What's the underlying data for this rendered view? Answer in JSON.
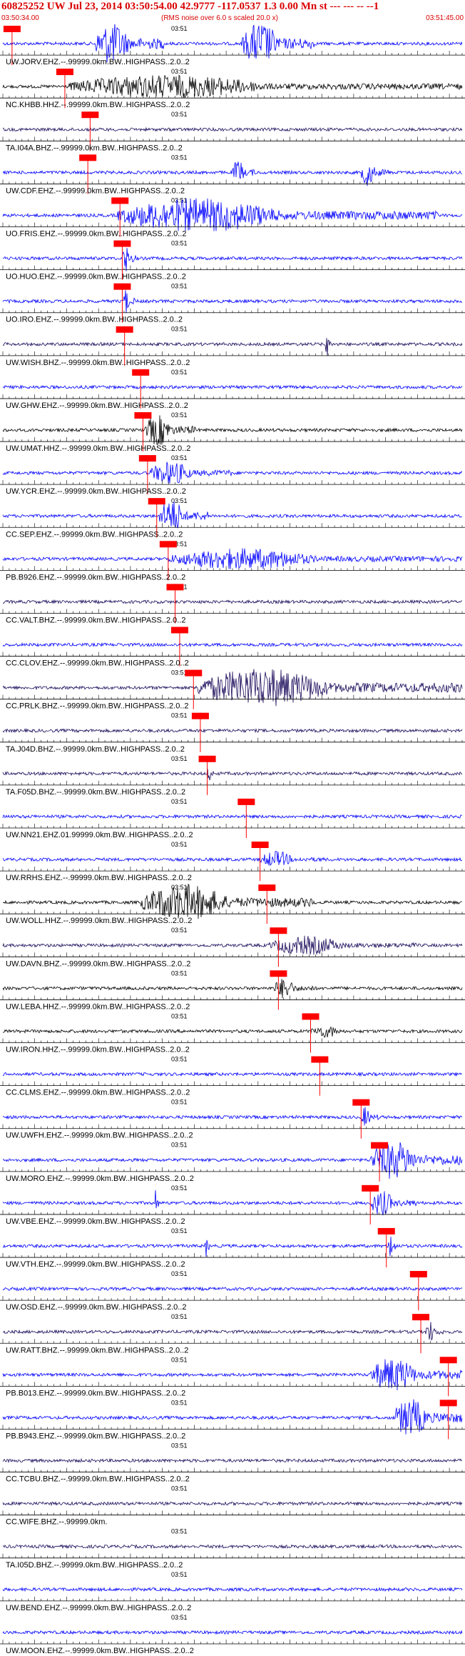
{
  "header": {
    "title": "60825252 UW Jul 23, 2014 03:50:54.00   42.9777 -117.0537  1.3 0.00 Mn st --- --- -- --1",
    "start_time": "03:50:34.00",
    "note": "(RMS noise over 6.0 s scaled 20.0 x)",
    "end_time": "03:51:45.00",
    "minute_mark": "03:51"
  },
  "colors": {
    "header_text": "#d90000",
    "pick_line": "#ff0000",
    "trace_blue": "#0000ff",
    "trace_black": "#000000",
    "trace_navy": "#1a0a5a",
    "axis": "#000000"
  },
  "chart_data": {
    "type": "line",
    "title": "60825252 UW Jul 23, 2014 03:50:54.00",
    "xlabel": "",
    "ylabel": "",
    "xlim": [
      "03:50:34.00",
      "03:51:45.00"
    ],
    "x_marker": "03:51",
    "grid": false,
    "legend": "none",
    "series": [
      {
        "name": "UW.JORV.EHZ.--.99999.0km.BW..HIGHPASS..2.0..2",
        "color": "blue",
        "pick_fraction": 0.02,
        "bursts": [
          [
            0.2,
            0.35,
            1.0
          ],
          [
            0.52,
            0.68,
            1.0
          ]
        ]
      },
      {
        "name": "NC.KHBB.HHZ.--.99999.0km.BW..HIGHPASS..2.0..2",
        "color": "black",
        "pick_fraction": 0.135,
        "bursts": [
          [
            0.14,
            1.0,
            0.55
          ]
        ]
      },
      {
        "name": "TA.I04A.BHZ.--.99999.0km.BW..HIGHPASS..2.0..2",
        "color": "navy",
        "pick_fraction": 0.19,
        "bursts": []
      },
      {
        "name": "UW.CDF.EHZ.--.99999.0km.BW..HIGHPASS..2.0..2",
        "color": "blue",
        "pick_fraction": 0.185,
        "bursts": [
          [
            0.5,
            0.55,
            0.6
          ],
          [
            0.78,
            0.84,
            0.65
          ]
        ]
      },
      {
        "name": "UO.FRIS.EHZ.--.99999.0km.BW..HIGHPASS..2.0..2",
        "color": "blue",
        "pick_fraction": 0.255,
        "bursts": [
          [
            0.25,
            0.95,
            0.8
          ]
        ]
      },
      {
        "name": "UO.HUO.EHZ.--.99999.0km.BW..HIGHPASS..2.0..2",
        "color": "blue",
        "pick_fraction": 0.26,
        "bursts": [
          [
            0.26,
            0.29,
            0.7
          ]
        ]
      },
      {
        "name": "UO.IRO.EHZ.--.99999.0km.BW..HIGHPASS..2.0..2",
        "color": "blue",
        "pick_fraction": 0.26,
        "bursts": [
          [
            0.26,
            0.29,
            0.6
          ]
        ]
      },
      {
        "name": "UW.WISH.BHZ.--.99999.0km.BW..HIGHPASS..2.0..2",
        "color": "navy",
        "pick_fraction": 0.265,
        "bursts": [
          [
            0.7,
            0.72,
            0.6
          ]
        ]
      },
      {
        "name": "UW.GHW.EHZ.--.99999.0km.BW..HIGHPASS..2.0..2",
        "color": "blue",
        "pick_fraction": 0.3,
        "bursts": []
      },
      {
        "name": "UW.UMAT.HHZ.--.99999.0km.BW..HIGHPASS..2.0..2",
        "color": "black",
        "pick_fraction": 0.305,
        "bursts": [
          [
            0.31,
            0.42,
            0.75
          ]
        ]
      },
      {
        "name": "UW.YCR.EHZ.--.99999.0km.BW..HIGHPASS..2.0..2",
        "color": "blue",
        "pick_fraction": 0.315,
        "bursts": [
          [
            0.32,
            0.5,
            0.55
          ]
        ]
      },
      {
        "name": "CC.SEP.EHZ.--.99999.0km.BW..HIGHPASS..2.0..2",
        "color": "blue",
        "pick_fraction": 0.335,
        "bursts": [
          [
            0.34,
            0.45,
            0.8
          ]
        ]
      },
      {
        "name": "PB.B926.EHZ.--.99999.0km.BW..HIGHPASS..2.0..2",
        "color": "blue",
        "pick_fraction": 0.36,
        "bursts": [
          [
            0.36,
            1.0,
            0.5
          ]
        ]
      },
      {
        "name": "CC.VALT.BHZ.--.99999.0km.BW..HIGHPASS..2.0..2",
        "color": "navy",
        "pick_fraction": 0.375,
        "bursts": []
      },
      {
        "name": "CC.CLOV.EHZ.--.99999.0km.BW..HIGHPASS..2.0..2",
        "color": "blue",
        "pick_fraction": 0.385,
        "bursts": []
      },
      {
        "name": "CC.PRLK.BHZ.--.99999.0km.BW..HIGHPASS..2.0..2",
        "color": "navy",
        "pick_fraction": 0.415,
        "bursts": [
          [
            0.42,
            1.0,
            0.9
          ]
        ]
      },
      {
        "name": "TA.J04D.BHZ.--.99999.0km.BW..HIGHPASS..2.0..2",
        "color": "navy",
        "pick_fraction": 0.43,
        "bursts": []
      },
      {
        "name": "TA.F05D.BHZ.--.99999.0km.BW..HIGHPASS..2.0..2",
        "color": "navy",
        "pick_fraction": 0.445,
        "bursts": [
          [
            0.445,
            0.46,
            0.5
          ]
        ]
      },
      {
        "name": "UW.NN21.EHZ.01.99999.0km.BW..HIGHPASS..2.0..2",
        "color": "blue",
        "pick_fraction": 0.53,
        "bursts": []
      },
      {
        "name": "UW.RRHS.EHZ.--.99999.0km.BW..HIGHPASS..2.0..2",
        "color": "blue",
        "pick_fraction": 0.56,
        "bursts": [
          [
            0.56,
            0.7,
            0.4
          ]
        ]
      },
      {
        "name": "UW.WOLL.HHZ.--.99999.0km.BW..HIGHPASS..2.0..2",
        "color": "black",
        "pick_fraction": 0.575,
        "bursts": [
          [
            0.3,
            0.68,
            0.85
          ]
        ]
      },
      {
        "name": "UW.DAVN.BHZ.--.99999.0km.BW..HIGHPASS..2.0..2",
        "color": "navy",
        "pick_fraction": 0.6,
        "bursts": [
          [
            0.58,
            0.9,
            0.45
          ]
        ]
      },
      {
        "name": "UW.LEBA.HHZ.--.99999.0km.BW..HIGHPASS..2.0..2",
        "color": "black",
        "pick_fraction": 0.6,
        "bursts": [
          [
            0.59,
            0.68,
            0.5
          ]
        ]
      },
      {
        "name": "UW.IRON.HHZ.--.99999.0km.BW..HIGHPASS..2.0..2",
        "color": "black",
        "pick_fraction": 0.67,
        "bursts": [
          [
            0.67,
            0.8,
            0.3
          ]
        ]
      },
      {
        "name": "CC.CLMS.EHZ.--.99999.0km.BW..HIGHPASS..2.0..2",
        "color": "blue",
        "pick_fraction": 0.69,
        "bursts": []
      },
      {
        "name": "UW.UWFH.EHZ.--.99999.0km.BW..HIGHPASS..2.0..2",
        "color": "blue",
        "pick_fraction": 0.78,
        "bursts": [
          [
            0.78,
            0.82,
            0.5
          ]
        ]
      },
      {
        "name": "UW.MORO.EHZ.--.99999.0km.BW..HIGHPASS..2.0..2",
        "color": "blue",
        "pick_fraction": 0.82,
        "bursts": [
          [
            0.8,
            1.0,
            0.9
          ]
        ]
      },
      {
        "name": "UW.VBE.EHZ.--.99999.0km.BW..HIGHPASS..2.0..2",
        "color": "blue",
        "pick_fraction": 0.8,
        "bursts": [
          [
            0.33,
            0.34,
            0.7
          ],
          [
            0.8,
            0.9,
            0.6
          ]
        ]
      },
      {
        "name": "UW.VTH.EHZ.--.99999.0km.BW..HIGHPASS..2.0..2",
        "color": "blue",
        "pick_fraction": 0.835,
        "bursts": [
          [
            0.44,
            0.45,
            0.7
          ],
          [
            0.84,
            0.86,
            0.8
          ]
        ]
      },
      {
        "name": "UW.OSD.EHZ.--.99999.0km.BW..HIGHPASS..2.0..2",
        "color": "blue",
        "pick_fraction": 0.905,
        "bursts": []
      },
      {
        "name": "UW.RATT.BHZ.--.99999.0km.BW..HIGHPASS..2.0..2",
        "color": "navy",
        "pick_fraction": 0.91,
        "bursts": [
          [
            0.92,
            0.96,
            0.5
          ]
        ]
      },
      {
        "name": "PB.B013.EHZ.--.99999.0km.BW..HIGHPASS..2.0..2",
        "color": "blue",
        "pick_fraction": 0.97,
        "bursts": [
          [
            0.8,
            1.0,
            0.8
          ]
        ]
      },
      {
        "name": "PB.B943.EHZ.--.99999.0km.BW..HIGHPASS..2.0..2",
        "color": "blue",
        "pick_fraction": 0.97,
        "bursts": [
          [
            0.85,
            1.0,
            0.9
          ]
        ]
      },
      {
        "name": "CC.TCBU.BHZ.--.99999.0km.BW..HIGHPASS..2.0..2",
        "color": "navy",
        "pick_fraction": null,
        "bursts": []
      },
      {
        "name": "CC.WIFE.BHZ.--.99999.0km.",
        "color": "navy",
        "pick_fraction": null,
        "bursts": []
      },
      {
        "name": "TA.I05D.BHZ.--.99999.0km.BW..HIGHPASS..2.0..2",
        "color": "navy",
        "pick_fraction": null,
        "bursts": []
      },
      {
        "name": "UW.BEND.EHZ.--.99999.0km.BW..HIGHPASS..2.0..2",
        "color": "blue",
        "pick_fraction": null,
        "bursts": []
      },
      {
        "name": "UW.MOON.EHZ.--.99999.0km.BW..HIGHPASS..2.0..2",
        "color": "blue",
        "pick_fraction": null,
        "bursts": []
      }
    ]
  }
}
